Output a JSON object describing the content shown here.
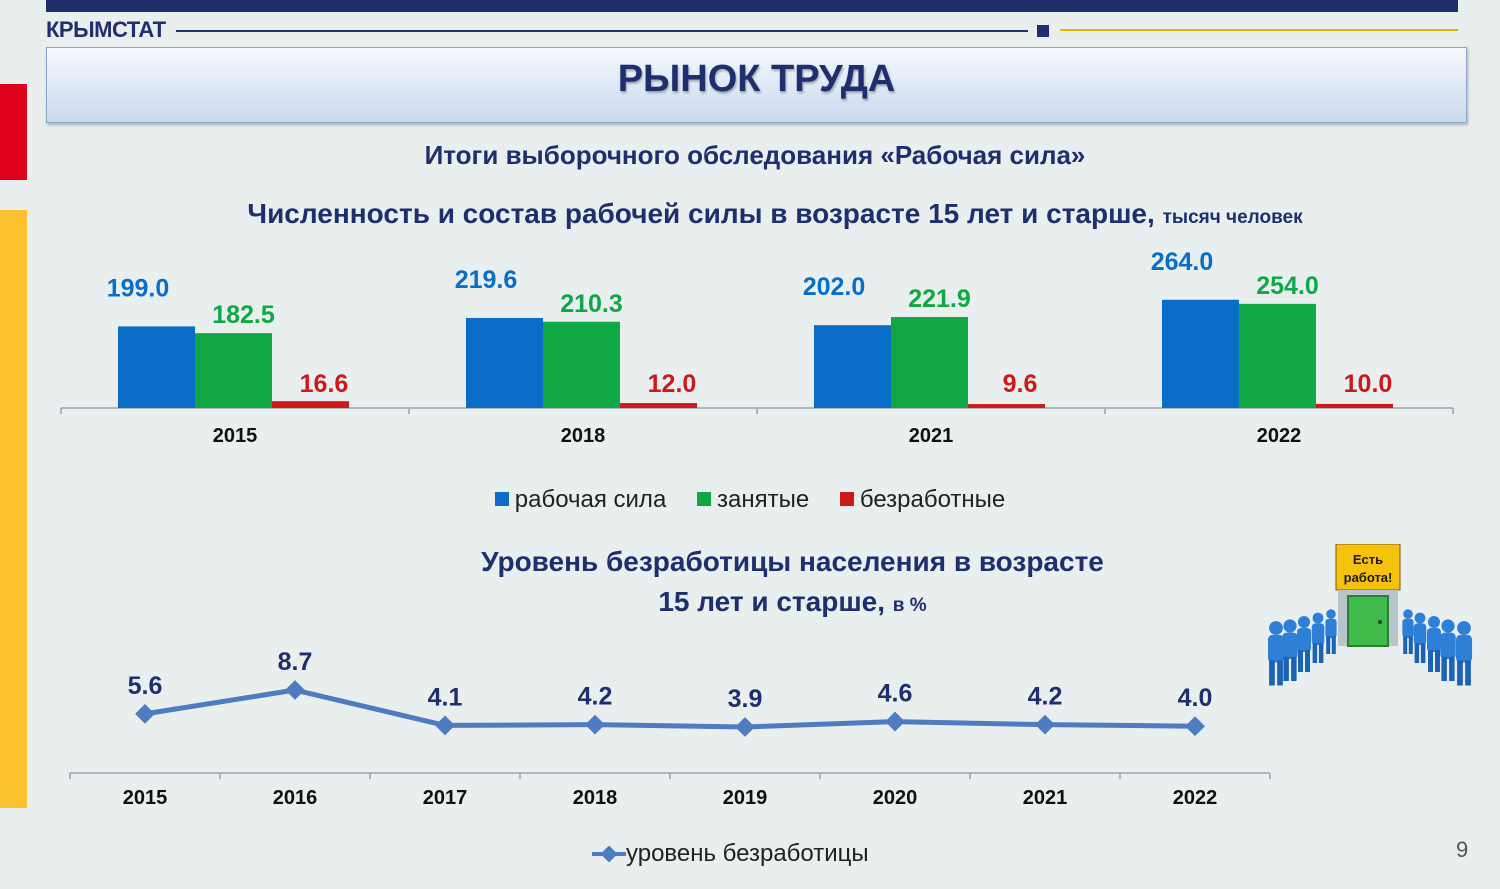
{
  "header": {
    "brand": "КРЫМСТАТ",
    "title": "РЫНОК ТРУДА",
    "subtitle": "Итоги выборочного обследования «Рабочая сила»"
  },
  "colors": {
    "labor_force": "#0a6ec9",
    "employed": "#0fa845",
    "unemployed": "#cc1a1a",
    "line": "#4f7bc0",
    "title": "#1f2f6e"
  },
  "chart_data": [
    {
      "type": "bar",
      "title": "Численность и состав рабочей силы в возрасте 15 лет и старше,",
      "unit": "тысяч человек",
      "categories": [
        "2015",
        "2018",
        "2021",
        "2022"
      ],
      "series": [
        {
          "name": "рабочая сила",
          "values": [
            199.0,
            219.6,
            202.0,
            264.0
          ],
          "labels": [
            "199.0",
            "219.6",
            "202.0",
            "264.0"
          ]
        },
        {
          "name": "занятые",
          "values": [
            182.5,
            210.3,
            221.9,
            254.0
          ],
          "labels": [
            "182.5",
            "210.3",
            "221.9",
            "254.0"
          ]
        },
        {
          "name": "безработные",
          "values": [
            16.6,
            12.0,
            9.6,
            10.0
          ],
          "labels": [
            "16.6",
            "12.0",
            "9.6",
            "10.0"
          ]
        }
      ],
      "legend": "bottom"
    },
    {
      "type": "line",
      "title_line1": "Уровень безработицы населения в возрасте",
      "title_line2": "15 лет и старше,",
      "unit": "в %",
      "categories": [
        "2015",
        "2016",
        "2017",
        "2018",
        "2019",
        "2020",
        "2021",
        "2022"
      ],
      "series": [
        {
          "name": "уровень безработицы",
          "values": [
            5.6,
            8.7,
            4.1,
            4.2,
            3.9,
            4.6,
            4.2,
            4.0
          ],
          "labels": [
            "5.6",
            "8.7",
            "4.1",
            "4.2",
            "3.9",
            "4.6",
            "4.2",
            "4.0"
          ]
        }
      ],
      "legend": "bottom"
    }
  ],
  "illustration": {
    "sign_line1": "Есть",
    "sign_line2": "работа!"
  },
  "page_number": "9"
}
